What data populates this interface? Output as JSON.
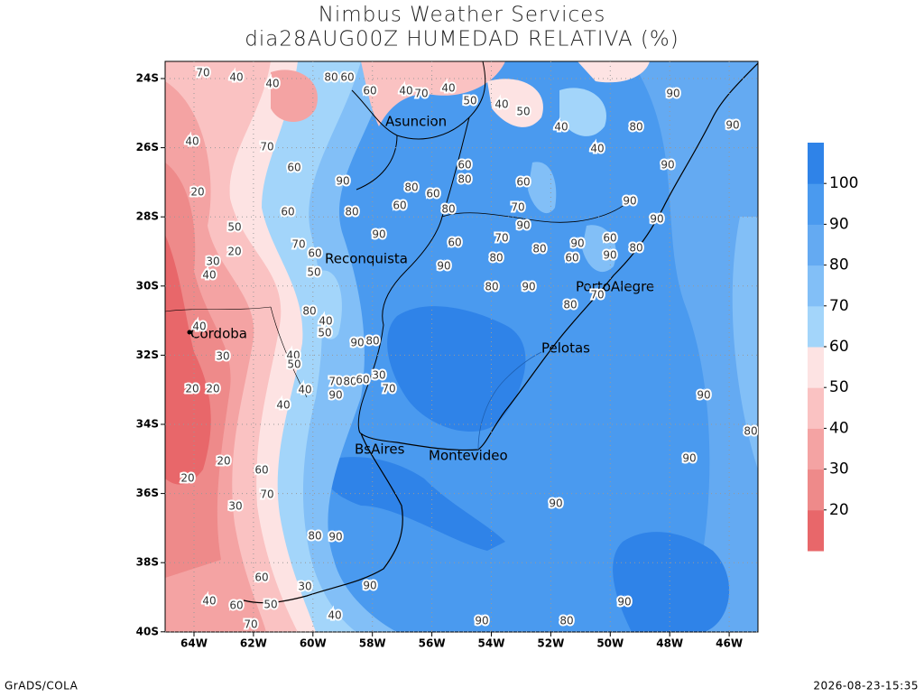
{
  "header": {
    "title": "Nimbus Weather Services",
    "subtitle": "dia28AUG00Z HUMEDAD RELATIVA (%)"
  },
  "map": {
    "lat_labels": [
      "24S",
      "26S",
      "28S",
      "30S",
      "32S",
      "34S",
      "36S",
      "38S",
      "40S"
    ],
    "lon_labels": [
      "64W",
      "62W",
      "60W",
      "58W",
      "56W",
      "54W",
      "52W",
      "50W",
      "48W",
      "46W"
    ],
    "cities": [
      "Asuncion",
      "Reconquista",
      "Cordoba",
      "PortoAlegre",
      "Pelotas",
      "BsAires",
      "Montevideo"
    ],
    "contour_labels": [
      70,
      40,
      40,
      80,
      60,
      60,
      40,
      70,
      40,
      50,
      40,
      50,
      40,
      40,
      80,
      90,
      90,
      90,
      40,
      20,
      50,
      20,
      30,
      40,
      70,
      60,
      60,
      70,
      60,
      50,
      90,
      80,
      90,
      60,
      80,
      60,
      80,
      60,
      90,
      60,
      80,
      60,
      70,
      90,
      70,
      80,
      80,
      90,
      80,
      90,
      60,
      60,
      90,
      80,
      90,
      90,
      70,
      80,
      40,
      30,
      20,
      20,
      40,
      50,
      40,
      40,
      80,
      40,
      50,
      90,
      80,
      70,
      80,
      60,
      30,
      70,
      90,
      20,
      20,
      60,
      70,
      30,
      80,
      90,
      90,
      30,
      60,
      50,
      60,
      40,
      70,
      40,
      90,
      80,
      90,
      90,
      90,
      90,
      80
    ]
  },
  "colorbar": {
    "levels": [
      20,
      30,
      40,
      50,
      60,
      70,
      80,
      90,
      100
    ],
    "colors": [
      "#e8676a",
      "#ee8a8a",
      "#f4a3a3",
      "#fac2c2",
      "#fde3e3",
      "#a3d5fa",
      "#82bff7",
      "#64aaf2",
      "#4a9aef",
      "#2f83e8"
    ]
  },
  "footer": {
    "left": "GrADS/COLA",
    "right": "2026-08-23-15:35"
  }
}
